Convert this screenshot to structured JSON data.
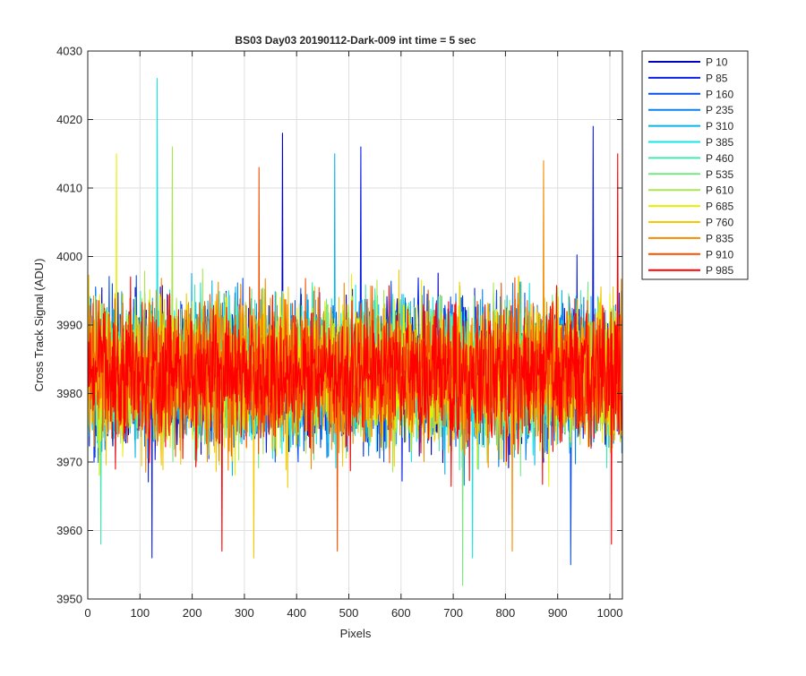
{
  "chart_data": {
    "type": "line",
    "title": "BS03 Day03 20190112-Dark-009 int time = 5 sec",
    "xlabel": "Pixels",
    "ylabel": "Cross Track Signal (ADU)",
    "xlim": [
      0,
      1024
    ],
    "ylim": [
      3950,
      4030
    ],
    "x_ticks": [
      0,
      100,
      200,
      300,
      400,
      500,
      600,
      700,
      800,
      900,
      1000
    ],
    "y_ticks": [
      3950,
      3960,
      3970,
      3980,
      3990,
      4000,
      4010,
      4020,
      4030
    ],
    "grid": true,
    "legend_position": "outside-top-right",
    "points_per_series": 1024,
    "noise_model": "random fluctuation around 3983 ADU, typical range 3965-4005",
    "series": [
      {
        "name": "P 10",
        "color": "#0000bf",
        "mean": 3983,
        "noise": 9
      },
      {
        "name": "P 85",
        "color": "#0a1ee6",
        "mean": 3983,
        "noise": 9
      },
      {
        "name": "P 160",
        "color": "#0a50e6",
        "mean": 3983,
        "noise": 9
      },
      {
        "name": "P 235",
        "color": "#0a82e6",
        "mean": 3983,
        "noise": 9
      },
      {
        "name": "P 310",
        "color": "#0ab4e6",
        "mean": 3983,
        "noise": 9
      },
      {
        "name": "P 385",
        "color": "#14e6e6",
        "mean": 3983,
        "noise": 9
      },
      {
        "name": "P 460",
        "color": "#46e6b4",
        "mean": 3983,
        "noise": 9
      },
      {
        "name": "P 535",
        "color": "#78e682",
        "mean": 3983,
        "noise": 9
      },
      {
        "name": "P 610",
        "color": "#aae650",
        "mean": 3983,
        "noise": 9
      },
      {
        "name": "P 685",
        "color": "#e6f000",
        "mean": 3983,
        "noise": 9
      },
      {
        "name": "P 760",
        "color": "#f5c800",
        "mean": 3983,
        "noise": 9
      },
      {
        "name": "P 835",
        "color": "#f58c00",
        "mean": 3983,
        "noise": 9
      },
      {
        "name": "P 910",
        "color": "#f55000",
        "mean": 3983,
        "noise": 9
      },
      {
        "name": "P 985",
        "color": "#ff0000",
        "mean": 3983,
        "noise": 9
      }
    ],
    "spikes": [
      {
        "series": "P 385",
        "x": 133,
        "y": 4026
      },
      {
        "series": "P 10",
        "x": 373,
        "y": 4018
      },
      {
        "series": "P 85",
        "x": 968,
        "y": 4019
      },
      {
        "series": "P 985",
        "x": 1015,
        "y": 4015
      },
      {
        "series": "P 85",
        "x": 523,
        "y": 4016
      },
      {
        "series": "P 610",
        "x": 162,
        "y": 4016
      },
      {
        "series": "P 835",
        "x": 873,
        "y": 4014
      },
      {
        "series": "P 910",
        "x": 328,
        "y": 4013
      },
      {
        "series": "P 685",
        "x": 55,
        "y": 4015
      },
      {
        "series": "P 310",
        "x": 473,
        "y": 4015
      },
      {
        "series": "P 535",
        "x": 718,
        "y": 3952
      },
      {
        "series": "P 160",
        "x": 925,
        "y": 3955
      },
      {
        "series": "P 985",
        "x": 257,
        "y": 3957
      },
      {
        "series": "P 910",
        "x": 478,
        "y": 3957
      },
      {
        "series": "P 85",
        "x": 123,
        "y": 3956
      },
      {
        "series": "P 760",
        "x": 318,
        "y": 3956
      },
      {
        "series": "P 385",
        "x": 737,
        "y": 3956
      },
      {
        "series": "P 835",
        "x": 813,
        "y": 3957
      },
      {
        "series": "P 460",
        "x": 25,
        "y": 3958
      },
      {
        "series": "P 985",
        "x": 1003,
        "y": 3958
      }
    ]
  }
}
